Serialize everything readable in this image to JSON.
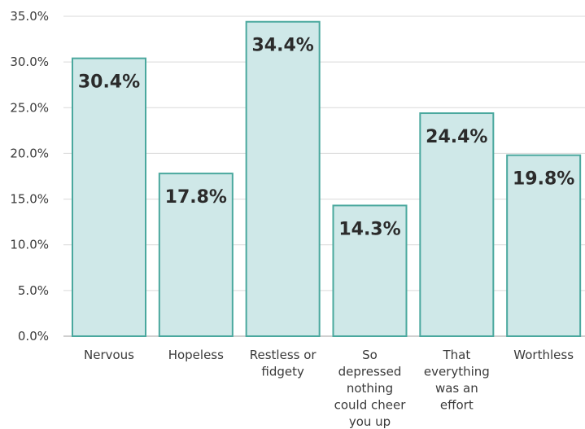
{
  "chart_data": {
    "type": "bar",
    "title": "",
    "xlabel": "",
    "ylabel": "",
    "ylim": [
      0,
      35
    ],
    "y_tick_step": 5,
    "y_tick_format": "percent_1dp",
    "grid": "horizontal",
    "categories": [
      "Nervous",
      "Hopeless",
      "Restless or fidgety",
      "So depressed nothing could cheer you up",
      "That everything was an effort",
      "Worthless"
    ],
    "category_lines": [
      [
        "Nervous"
      ],
      [
        "Hopeless"
      ],
      [
        "Restless or",
        "fidgety"
      ],
      [
        "So",
        "depressed",
        "nothing",
        "could cheer",
        "you up"
      ],
      [
        "That",
        "everything",
        "was an",
        "effort"
      ],
      [
        "Worthless"
      ]
    ],
    "values": [
      30.4,
      17.8,
      34.4,
      14.3,
      24.4,
      19.8
    ],
    "data_labels": [
      "30.4%",
      "17.8%",
      "34.4%",
      "14.3%",
      "24.4%",
      "19.8%"
    ],
    "y_ticks": [
      "0.0%",
      "5.0%",
      "10.0%",
      "15.0%",
      "20.0%",
      "25.0%",
      "30.0%",
      "35.0%"
    ],
    "colors": {
      "bar_fill": "#cfe8e8",
      "bar_stroke": "#4aa89e",
      "grid": "#d9d9d9",
      "axis": "#bfbfbf"
    }
  }
}
